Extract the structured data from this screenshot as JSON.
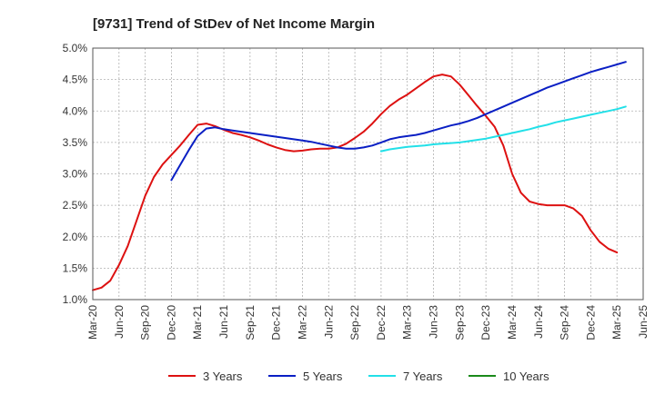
{
  "chart_data": {
    "type": "line",
    "title": "[9731]  Trend of StDev of Net Income Margin",
    "xlabel": "",
    "ylabel": "",
    "x_ticks": [
      "Mar-20",
      "Jun-20",
      "Sep-20",
      "Dec-20",
      "Mar-21",
      "Jun-21",
      "Sep-21",
      "Dec-21",
      "Mar-22",
      "Jun-22",
      "Sep-22",
      "Dec-22",
      "Mar-23",
      "Jun-23",
      "Sep-23",
      "Dec-23",
      "Mar-24",
      "Jun-24",
      "Sep-24",
      "Dec-24",
      "Mar-25",
      "Jun-25"
    ],
    "y_ticks": [
      "1.0%",
      "1.5%",
      "2.0%",
      "2.5%",
      "3.0%",
      "3.5%",
      "4.0%",
      "4.5%",
      "5.0%"
    ],
    "ylim": [
      1.0,
      5.0
    ],
    "grid": true,
    "legend_position": "bottom",
    "series": [
      {
        "name": "3 Years",
        "color": "#dd1111",
        "points": [
          [
            "Mar-20",
            1.15
          ],
          [
            "Apr-20",
            1.19
          ],
          [
            "May-20",
            1.3
          ],
          [
            "Jun-20",
            1.55
          ],
          [
            "Jul-20",
            1.85
          ],
          [
            "Aug-20",
            2.25
          ],
          [
            "Sep-20",
            2.65
          ],
          [
            "Oct-20",
            2.95
          ],
          [
            "Nov-20",
            3.15
          ],
          [
            "Dec-20",
            3.3
          ],
          [
            "Jan-21",
            3.45
          ],
          [
            "Feb-21",
            3.62
          ],
          [
            "Mar-21",
            3.78
          ],
          [
            "Apr-21",
            3.8
          ],
          [
            "May-21",
            3.76
          ],
          [
            "Jun-21",
            3.7
          ],
          [
            "Jul-21",
            3.65
          ],
          [
            "Aug-21",
            3.62
          ],
          [
            "Sep-21",
            3.58
          ],
          [
            "Oct-21",
            3.53
          ],
          [
            "Nov-21",
            3.47
          ],
          [
            "Dec-21",
            3.42
          ],
          [
            "Jan-22",
            3.38
          ],
          [
            "Feb-22",
            3.36
          ],
          [
            "Mar-22",
            3.37
          ],
          [
            "Apr-22",
            3.39
          ],
          [
            "May-22",
            3.4
          ],
          [
            "Jun-22",
            3.4
          ],
          [
            "Jul-22",
            3.42
          ],
          [
            "Aug-22",
            3.48
          ],
          [
            "Sep-22",
            3.57
          ],
          [
            "Oct-22",
            3.67
          ],
          [
            "Nov-22",
            3.8
          ],
          [
            "Dec-22",
            3.95
          ],
          [
            "Jan-23",
            4.08
          ],
          [
            "Feb-23",
            4.18
          ],
          [
            "Mar-23",
            4.26
          ],
          [
            "Apr-23",
            4.36
          ],
          [
            "May-23",
            4.46
          ],
          [
            "Jun-23",
            4.55
          ],
          [
            "Jul-23",
            4.58
          ],
          [
            "Aug-23",
            4.55
          ],
          [
            "Sep-23",
            4.42
          ],
          [
            "Oct-23",
            4.25
          ],
          [
            "Nov-23",
            4.08
          ],
          [
            "Dec-23",
            3.92
          ],
          [
            "Jan-24",
            3.75
          ],
          [
            "Feb-24",
            3.45
          ],
          [
            "Mar-24",
            3.0
          ],
          [
            "Apr-24",
            2.7
          ],
          [
            "May-24",
            2.56
          ],
          [
            "Jun-24",
            2.52
          ],
          [
            "Jul-24",
            2.5
          ],
          [
            "Aug-24",
            2.5
          ],
          [
            "Sep-24",
            2.5
          ],
          [
            "Oct-24",
            2.45
          ],
          [
            "Nov-24",
            2.33
          ],
          [
            "Dec-24",
            2.1
          ],
          [
            "Jan-25",
            1.92
          ],
          [
            "Feb-25",
            1.81
          ],
          [
            "Mar-25",
            1.75
          ]
        ]
      },
      {
        "name": "5 Years",
        "color": "#0a1fc4",
        "points": [
          [
            "Dec-20",
            2.9
          ],
          [
            "Jan-21",
            3.14
          ],
          [
            "Feb-21",
            3.38
          ],
          [
            "Mar-21",
            3.6
          ],
          [
            "Apr-21",
            3.72
          ],
          [
            "May-21",
            3.74
          ],
          [
            "Jun-21",
            3.71
          ],
          [
            "Jul-21",
            3.69
          ],
          [
            "Aug-21",
            3.67
          ],
          [
            "Sep-21",
            3.65
          ],
          [
            "Oct-21",
            3.63
          ],
          [
            "Nov-21",
            3.61
          ],
          [
            "Dec-21",
            3.59
          ],
          [
            "Jan-22",
            3.57
          ],
          [
            "Feb-22",
            3.55
          ],
          [
            "Mar-22",
            3.53
          ],
          [
            "Apr-22",
            3.51
          ],
          [
            "May-22",
            3.48
          ],
          [
            "Jun-22",
            3.45
          ],
          [
            "Jul-22",
            3.42
          ],
          [
            "Aug-22",
            3.4
          ],
          [
            "Sep-22",
            3.4
          ],
          [
            "Oct-22",
            3.42
          ],
          [
            "Nov-22",
            3.45
          ],
          [
            "Dec-22",
            3.5
          ],
          [
            "Jan-23",
            3.55
          ],
          [
            "Feb-23",
            3.58
          ],
          [
            "Mar-23",
            3.6
          ],
          [
            "Apr-23",
            3.62
          ],
          [
            "May-23",
            3.65
          ],
          [
            "Jun-23",
            3.69
          ],
          [
            "Jul-23",
            3.73
          ],
          [
            "Aug-23",
            3.77
          ],
          [
            "Sep-23",
            3.8
          ],
          [
            "Oct-23",
            3.84
          ],
          [
            "Nov-23",
            3.89
          ],
          [
            "Dec-23",
            3.95
          ],
          [
            "Jan-24",
            4.01
          ],
          [
            "Feb-24",
            4.07
          ],
          [
            "Mar-24",
            4.13
          ],
          [
            "Apr-24",
            4.19
          ],
          [
            "May-24",
            4.25
          ],
          [
            "Jun-24",
            4.31
          ],
          [
            "Jul-24",
            4.37
          ],
          [
            "Aug-24",
            4.42
          ],
          [
            "Sep-24",
            4.47
          ],
          [
            "Oct-24",
            4.52
          ],
          [
            "Nov-24",
            4.57
          ],
          [
            "Dec-24",
            4.62
          ],
          [
            "Jan-25",
            4.66
          ],
          [
            "Feb-25",
            4.7
          ],
          [
            "Mar-25",
            4.74
          ],
          [
            "Apr-25",
            4.78
          ]
        ]
      },
      {
        "name": "7 Years",
        "color": "#22e0e8",
        "points": [
          [
            "Dec-22",
            3.36
          ],
          [
            "Jan-23",
            3.39
          ],
          [
            "Feb-23",
            3.41
          ],
          [
            "Mar-23",
            3.43
          ],
          [
            "Apr-23",
            3.44
          ],
          [
            "May-23",
            3.45
          ],
          [
            "Jun-23",
            3.47
          ],
          [
            "Jul-23",
            3.48
          ],
          [
            "Aug-23",
            3.49
          ],
          [
            "Sep-23",
            3.5
          ],
          [
            "Oct-23",
            3.52
          ],
          [
            "Nov-23",
            3.54
          ],
          [
            "Dec-23",
            3.56
          ],
          [
            "Jan-24",
            3.59
          ],
          [
            "Feb-24",
            3.62
          ],
          [
            "Mar-24",
            3.65
          ],
          [
            "Apr-24",
            3.68
          ],
          [
            "May-24",
            3.71
          ],
          [
            "Jun-24",
            3.75
          ],
          [
            "Jul-24",
            3.78
          ],
          [
            "Aug-24",
            3.82
          ],
          [
            "Sep-24",
            3.85
          ],
          [
            "Oct-24",
            3.88
          ],
          [
            "Nov-24",
            3.91
          ],
          [
            "Dec-24",
            3.94
          ],
          [
            "Jan-25",
            3.97
          ],
          [
            "Feb-25",
            4.0
          ],
          [
            "Mar-25",
            4.03
          ],
          [
            "Apr-25",
            4.07
          ]
        ]
      },
      {
        "name": "10 Years",
        "color": "#1a8a1a",
        "points": []
      }
    ]
  }
}
